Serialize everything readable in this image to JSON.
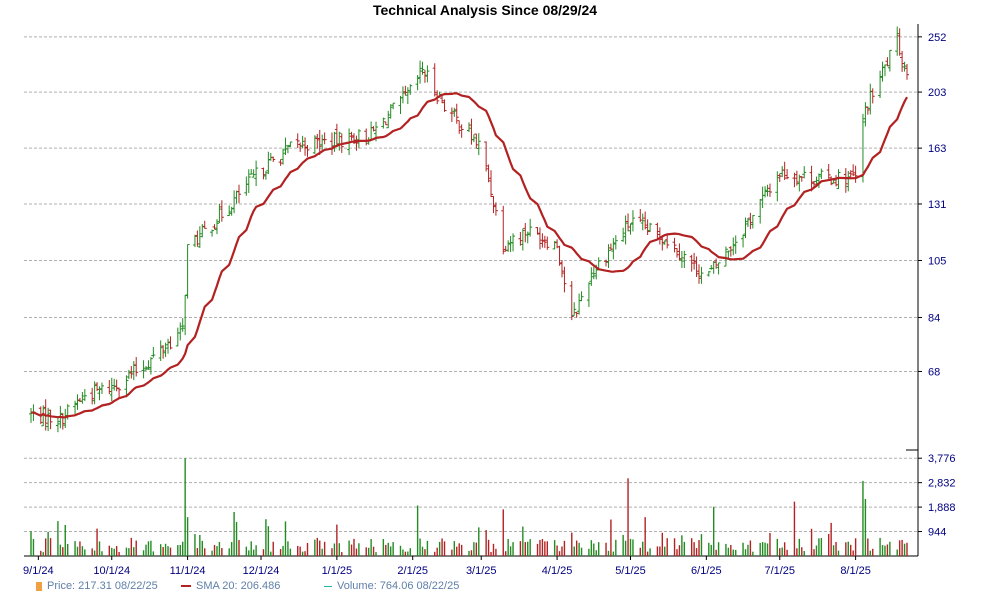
{
  "chart_data": {
    "type": "ohlc",
    "title": "Technical Analysis Since 08/29/24",
    "price_axis": {
      "scale": "log",
      "ylim": [
        50,
        265
      ],
      "ticks": [
        252,
        203,
        163,
        131,
        105,
        84,
        68
      ]
    },
    "volume_axis": {
      "ylim": [
        0,
        3900
      ],
      "ticks": [
        3776,
        2832,
        1888,
        944
      ],
      "tick_labels": [
        "3,776",
        "2,832",
        "1,888",
        "944"
      ]
    },
    "x_axis": {
      "start": "2024-08-29",
      "end": "2025-08-22",
      "ticks": [
        {
          "date": "2024-09-01",
          "label": "9/1/24"
        },
        {
          "date": "2024-10-01",
          "label": "10/1/24"
        },
        {
          "date": "2024-11-01",
          "label": "11/1/24"
        },
        {
          "date": "2024-12-01",
          "label": "12/1/24"
        },
        {
          "date": "2025-01-01",
          "label": "1/1/25"
        },
        {
          "date": "2025-02-01",
          "label": "2/1/25"
        },
        {
          "date": "2025-03-01",
          "label": "3/1/25"
        },
        {
          "date": "2025-04-01",
          "label": "4/1/25"
        },
        {
          "date": "2025-05-01",
          "label": "5/1/25"
        },
        {
          "date": "2025-06-01",
          "label": "6/1/25"
        },
        {
          "date": "2025-07-01",
          "label": "7/1/25"
        },
        {
          "date": "2025-08-01",
          "label": "8/1/25"
        }
      ]
    },
    "grid": true,
    "price_anchors": [
      {
        "date": "2024-08-29",
        "close": 57.5
      },
      {
        "date": "2024-09-10",
        "close": 56.5
      },
      {
        "date": "2024-09-20",
        "close": 62
      },
      {
        "date": "2024-10-01",
        "close": 64
      },
      {
        "date": "2024-10-15",
        "close": 70
      },
      {
        "date": "2024-10-30",
        "close": 80
      },
      {
        "date": "2024-11-01",
        "close": 110
      },
      {
        "date": "2024-11-15",
        "close": 126
      },
      {
        "date": "2024-12-01",
        "close": 150
      },
      {
        "date": "2024-12-15",
        "close": 165
      },
      {
        "date": "2025-01-01",
        "close": 168
      },
      {
        "date": "2025-01-15",
        "close": 172
      },
      {
        "date": "2025-02-01",
        "close": 205
      },
      {
        "date": "2025-02-05",
        "close": 222
      },
      {
        "date": "2025-02-15",
        "close": 190
      },
      {
        "date": "2025-03-01",
        "close": 163
      },
      {
        "date": "2025-03-10",
        "close": 112
      },
      {
        "date": "2025-03-20",
        "close": 118
      },
      {
        "date": "2025-04-01",
        "close": 112
      },
      {
        "date": "2025-04-07",
        "close": 83
      },
      {
        "date": "2025-04-15",
        "close": 100
      },
      {
        "date": "2025-05-01",
        "close": 122
      },
      {
        "date": "2025-05-15",
        "close": 115
      },
      {
        "date": "2025-06-01",
        "close": 98
      },
      {
        "date": "2025-06-15",
        "close": 117
      },
      {
        "date": "2025-07-01",
        "close": 148
      },
      {
        "date": "2025-07-15",
        "close": 145
      },
      {
        "date": "2025-08-01",
        "close": 145
      },
      {
        "date": "2025-08-05",
        "close": 190
      },
      {
        "date": "2025-08-18",
        "close": 248
      },
      {
        "date": "2025-08-22",
        "close": 217.31
      }
    ],
    "volume_spikes": [
      {
        "date": "2024-11-01",
        "value": 3776
      },
      {
        "date": "2024-11-02",
        "value": 1500
      },
      {
        "date": "2024-11-21",
        "value": 1700
      },
      {
        "date": "2025-02-04",
        "value": 1950
      },
      {
        "date": "2025-03-10",
        "value": 1800
      },
      {
        "date": "2025-05-01",
        "value": 3000
      },
      {
        "date": "2025-05-08",
        "value": 1500
      },
      {
        "date": "2025-06-05",
        "value": 1900
      },
      {
        "date": "2025-07-08",
        "value": 2100
      },
      {
        "date": "2025-08-05",
        "value": 2900
      },
      {
        "date": "2025-08-06",
        "value": 2200
      }
    ],
    "sma_length": 20,
    "colors": {
      "up_bar": "#228b22",
      "down_bar": "#b22222",
      "sma": "#b22222",
      "grid": "#b0b0b0",
      "axis_text": "#000080",
      "legend_text": "#5f7fa8",
      "price_swatch": "#f0a040",
      "volume_swatch": "#20b2aa"
    },
    "legend": [
      {
        "label": "Price: 217.31  08/22/25"
      },
      {
        "label": "SMA 20: 206.486"
      },
      {
        "label": "Volume: 764.06  08/22/25"
      }
    ]
  }
}
